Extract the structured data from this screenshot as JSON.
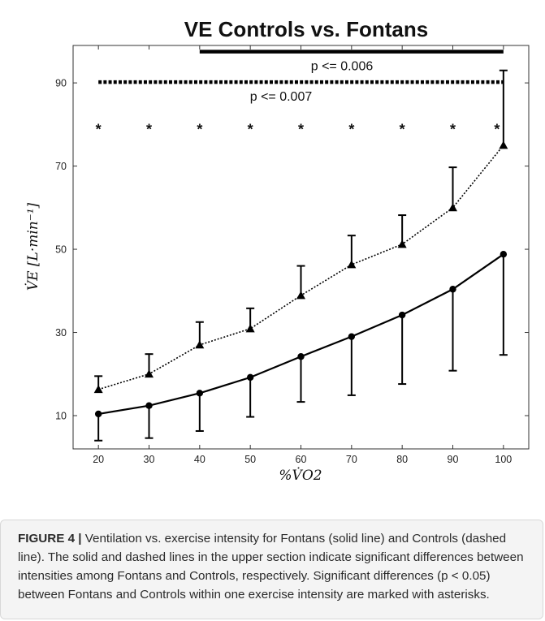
{
  "chart_data": {
    "type": "line",
    "title": "VE Controls vs. Fontans",
    "xlabel": "%V̇O2",
    "ylabel": "V̇E [L·min⁻¹]",
    "xlim": [
      15,
      105
    ],
    "ylim": [
      2,
      99
    ],
    "x_ticks": [
      20,
      30,
      40,
      50,
      60,
      70,
      80,
      90,
      100
    ],
    "y_ticks": [
      10,
      30,
      50,
      70,
      90
    ],
    "x": [
      20,
      30,
      40,
      50,
      60,
      70,
      80,
      90,
      100
    ],
    "series": [
      {
        "name": "Fontans",
        "line": "solid",
        "marker": "circle",
        "values": [
          10.4,
          12.4,
          15.4,
          19.2,
          24.2,
          29.0,
          34.2,
          40.4,
          48.8
        ],
        "error_low": [
          4.0,
          4.6,
          6.3,
          9.7,
          13.3,
          14.9,
          17.6,
          20.8,
          24.6
        ]
      },
      {
        "name": "Controls",
        "line": "dashed",
        "marker": "triangle",
        "values": [
          16.3,
          20.0,
          27.0,
          30.9,
          38.9,
          46.3,
          51.2,
          60.0,
          75.0
        ],
        "error_high": [
          19.5,
          24.8,
          32.5,
          35.8,
          46.0,
          53.3,
          58.2,
          69.7,
          93.0
        ]
      }
    ],
    "significance_bars": [
      {
        "label": "p <= 0.006",
        "style": "solid",
        "x_start": 40,
        "x_end": 100,
        "y": 97.5
      },
      {
        "label": "p <= 0.007",
        "style": "dashed",
        "x_start": 20,
        "x_end": 100,
        "y": 90.2
      }
    ],
    "asterisks": {
      "symbol": "*",
      "x": [
        20,
        30,
        40,
        50,
        60,
        70,
        80,
        90,
        100
      ],
      "y": 80
    }
  },
  "caption": {
    "label": "FIGURE 4 |",
    "text": " Ventilation vs. exercise intensity for Fontans (solid line) and Controls (dashed line). The solid and dashed lines in the upper section indicate significant differences between intensities among Fontans and Controls, respectively. Significant differences (p < 0.05) between Fontans and Controls within one exercise intensity are marked with asterisks."
  }
}
